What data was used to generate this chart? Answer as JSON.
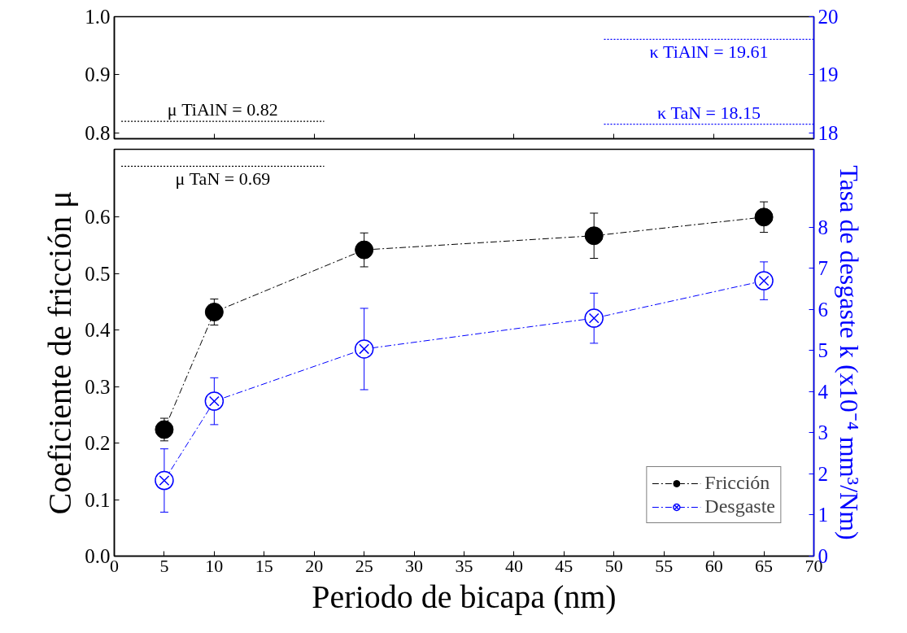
{
  "chart_data": [
    {
      "type": "line",
      "xlim": [
        0,
        70
      ],
      "ylim": [
        0.79,
        1.0
      ],
      "yticks": [
        0.8,
        0.9,
        {
          "value": 1,
          "label": "1.0"
        }
      ],
      "y2lim": [
        17.9,
        20
      ],
      "y2ticks": [
        18,
        19,
        20
      ],
      "tick_labels": "y",
      "grid": false,
      "ref_lines": [
        {
          "axis": "y",
          "value": 0.82,
          "label": "μ TiAlN = 0.82",
          "color": "#000000",
          "line_style": "dotted"
        },
        {
          "axis": "y2",
          "value": 19.61,
          "label": "κ TiAlN = 19.61",
          "color": "#0000ff",
          "line_style": "dotted"
        },
        {
          "axis": "y2",
          "value": 18.15,
          "label": "κ TaN = 18.15",
          "color": "#0000ff",
          "line_style": "dotted"
        }
      ]
    },
    {
      "type": "line",
      "xlabel": "Periodo de bicapa (nm)",
      "ylabel": "Coeficiente de fricción μ",
      "y2label": "Tasa de desgaste k (x10⁻⁴ mm³/Nm)",
      "xlim": [
        0,
        70
      ],
      "xticks": [
        0,
        5,
        10,
        15,
        20,
        25,
        30,
        35,
        40,
        45,
        50,
        55,
        60,
        65,
        70
      ],
      "ylim": [
        0,
        0.72
      ],
      "yticks": [
        {
          "value": 0,
          "label": "0.0"
        },
        0.1,
        0.2,
        0.3,
        0.4,
        0.5,
        0.6
      ],
      "y2lim": [
        0,
        9.9
      ],
      "y2ticks": [
        0,
        1,
        2,
        3,
        4,
        5,
        6,
        7,
        8
      ],
      "grid": false,
      "legend": "bottom right",
      "line_style": "dashed",
      "x": [
        5,
        10,
        25,
        48,
        65
      ],
      "series": [
        {
          "name": "Fricción",
          "color": "#000000",
          "marker": "circle",
          "values": [
            0.224,
            0.432,
            0.542,
            0.567,
            0.6
          ],
          "errors": [
            0.02,
            0.023,
            0.03,
            0.04,
            0.027
          ]
        },
        {
          "name": "Desgaste",
          "color": "#0000ff",
          "marker": "circle",
          "axis": "y2",
          "values": [
            1.84,
            3.77,
            5.04,
            5.79,
            6.7
          ],
          "errors": [
            0.77,
            0.57,
            0.99,
            0.61,
            0.46
          ]
        }
      ],
      "ref_lines": [
        {
          "axis": "y",
          "value": 0.69,
          "label": "μ TaN = 0.69",
          "color": "#000000",
          "line_style": "dotted"
        }
      ]
    }
  ]
}
